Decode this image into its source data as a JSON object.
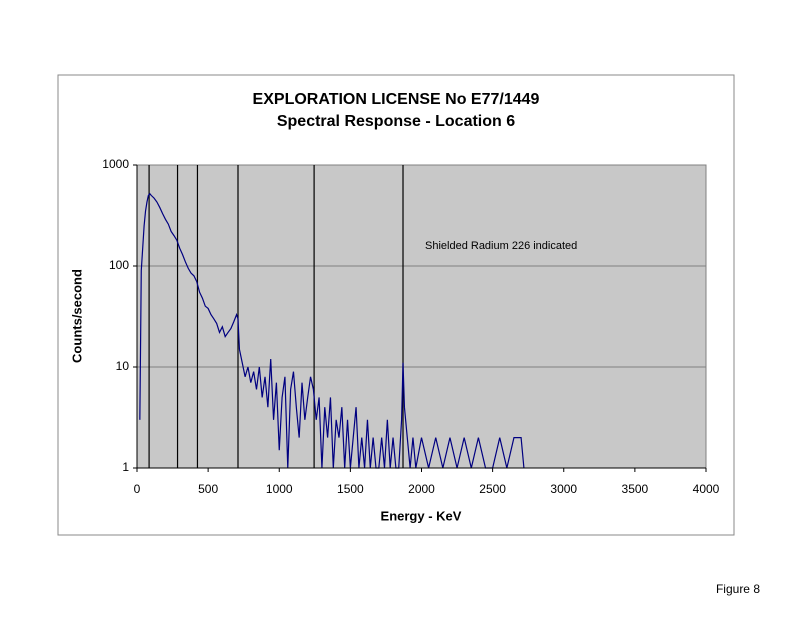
{
  "chart_data": {
    "type": "line",
    "title": "EXPLORATION LICENSE No E77/1449",
    "subtitle": "Spectral Response - Location 6",
    "x_label": "Energy - KeV",
    "y_label": "Counts/second",
    "annotation": "Shielded Radium 226 indicated",
    "figure_label": "Figure 8",
    "log_y": true,
    "grid": true,
    "plot_background": "#c8c8c8",
    "reference_lines": [
      85,
      285,
      425,
      710,
      1245,
      1870
    ],
    "reference_color": "#000000",
    "xlim": [
      0,
      4000
    ],
    "xticks": [
      0,
      500,
      1000,
      1500,
      2000,
      2500,
      3000,
      3500,
      4000
    ],
    "ylim": [
      1,
      1000
    ],
    "yticks": [
      1,
      10,
      100,
      1000
    ],
    "x": [
      20,
      30,
      40,
      50,
      60,
      70,
      80,
      90,
      100,
      120,
      140,
      160,
      180,
      200,
      220,
      240,
      260,
      280,
      300,
      320,
      340,
      360,
      380,
      400,
      420,
      440,
      460,
      480,
      500,
      520,
      540,
      560,
      580,
      600,
      620,
      640,
      660,
      680,
      700,
      710,
      720,
      740,
      760,
      780,
      800,
      820,
      840,
      860,
      880,
      900,
      920,
      940,
      960,
      980,
      1000,
      1020,
      1040,
      1060,
      1080,
      1100,
      1120,
      1140,
      1160,
      1180,
      1200,
      1220,
      1240,
      1260,
      1280,
      1300,
      1320,
      1340,
      1360,
      1380,
      1400,
      1420,
      1440,
      1460,
      1480,
      1500,
      1520,
      1540,
      1560,
      1580,
      1600,
      1620,
      1640,
      1660,
      1680,
      1700,
      1720,
      1740,
      1760,
      1780,
      1800,
      1820,
      1840,
      1860,
      1870,
      1880,
      1900,
      1920,
      1940,
      1960,
      2000,
      2050,
      2100,
      2150,
      2200,
      2250,
      2300,
      2350,
      2400,
      2450,
      2500,
      2550,
      2600,
      2650,
      2700,
      2720
    ],
    "series": [
      {
        "name": "Counts",
        "color": "#000080",
        "values": [
          3,
          90,
          150,
          250,
          350,
          430,
          500,
          520,
          500,
          470,
          430,
          380,
          330,
          290,
          260,
          220,
          200,
          180,
          150,
          130,
          110,
          95,
          85,
          80,
          70,
          55,
          48,
          40,
          38,
          33,
          30,
          27,
          22,
          25,
          20,
          22,
          24,
          28,
          33,
          30,
          15,
          11,
          8,
          10,
          7,
          9,
          6,
          10,
          5,
          8,
          4,
          12,
          3,
          7,
          1.5,
          5,
          8,
          1,
          6,
          9,
          4,
          2,
          7,
          3,
          5,
          8,
          6,
          3,
          5,
          1,
          4,
          2,
          5,
          1,
          3,
          2,
          4,
          1,
          3,
          1,
          2,
          4,
          1,
          2,
          1,
          3,
          1,
          2,
          1,
          1,
          2,
          1,
          3,
          1,
          2,
          1,
          1,
          3,
          11,
          4,
          2,
          1,
          2,
          1,
          2,
          1,
          2,
          1,
          2,
          1,
          2,
          1,
          2,
          1,
          1,
          2,
          1,
          2,
          2,
          1
        ]
      }
    ]
  }
}
